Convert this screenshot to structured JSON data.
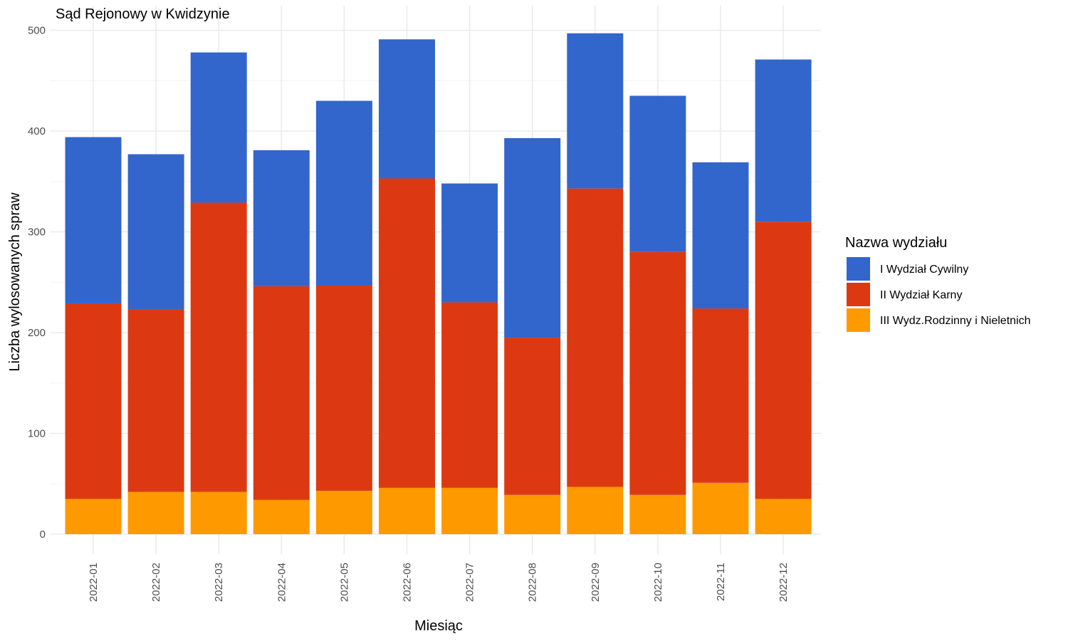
{
  "chart_data": {
    "type": "bar",
    "stacked": true,
    "title": "Sąd Rejonowy w Kwidzynie",
    "xlabel": "Miesiąc",
    "ylabel": "Liczba wylosowanych spraw",
    "ylim": [
      0,
      500
    ],
    "yticks": [
      0,
      100,
      200,
      300,
      400,
      500
    ],
    "grid": true,
    "legend": {
      "title": "Nazwa wydziału",
      "placement": "right"
    },
    "categories": [
      "2022-01",
      "2022-02",
      "2022-03",
      "2022-04",
      "2022-05",
      "2022-06",
      "2022-07",
      "2022-08",
      "2022-09",
      "2022-10",
      "2022-11",
      "2022-12"
    ],
    "series": [
      {
        "name": "I Wydział Cywilny",
        "color": "#3366cc",
        "values": [
          165,
          154,
          149,
          135,
          183,
          138,
          118,
          198,
          154,
          155,
          145,
          161
        ]
      },
      {
        "name": "II Wydział Karny",
        "color": "#dc3912",
        "values": [
          194,
          181,
          287,
          212,
          204,
          307,
          184,
          156,
          296,
          241,
          173,
          275
        ]
      },
      {
        "name": "III Wydz.Rodzinny i Nieletnich",
        "color": "#ff9900",
        "values": [
          35,
          42,
          42,
          34,
          43,
          46,
          46,
          39,
          47,
          39,
          51,
          35
        ]
      }
    ]
  }
}
